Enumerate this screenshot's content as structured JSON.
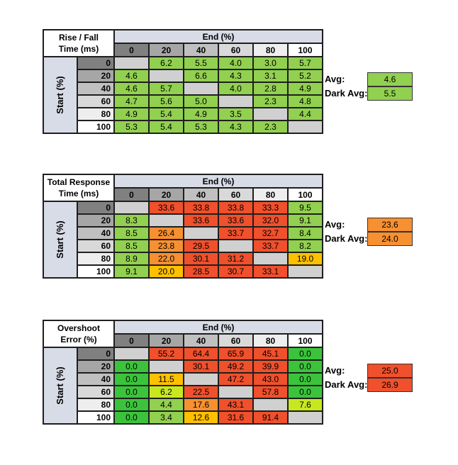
{
  "colors": {
    "header_bg": "#d8dce6",
    "col_shades": [
      "#808080",
      "#a6a6a6",
      "#c0c0c0",
      "#d9d9d9",
      "#eeeeee",
      "#ffffff"
    ],
    "empty": "#d0d0d0",
    "green": "#92d050",
    "bright_green": "#3bc43b",
    "yellow_green": "#c7e81f",
    "yellow": "#ffc000",
    "orange": "#f79030",
    "red": "#f0502c"
  },
  "tables": [
    {
      "corner": [
        "Rise / Fall",
        "Time (ms)"
      ],
      "end_label": "End (%)",
      "start_label": "Start (%)",
      "cols": [
        "0",
        "20",
        "40",
        "60",
        "80",
        "100"
      ],
      "rows": [
        {
          "label": "0",
          "cells": [
            "",
            "6.2",
            "5.5",
            "4.0",
            "3.0",
            "5.7"
          ],
          "colors": [
            "empty",
            "green",
            "green",
            "green",
            "green",
            "green"
          ]
        },
        {
          "label": "20",
          "cells": [
            "4.6",
            "",
            "6.6",
            "4.3",
            "3.1",
            "5.2"
          ],
          "colors": [
            "green",
            "empty",
            "green",
            "green",
            "green",
            "green"
          ]
        },
        {
          "label": "40",
          "cells": [
            "4.6",
            "5.7",
            "",
            "4.0",
            "2.8",
            "4.9"
          ],
          "colors": [
            "green",
            "green",
            "empty",
            "green",
            "green",
            "green"
          ]
        },
        {
          "label": "60",
          "cells": [
            "4.7",
            "5.6",
            "5.0",
            "",
            "2.3",
            "4.8"
          ],
          "colors": [
            "green",
            "green",
            "green",
            "empty",
            "green",
            "green"
          ]
        },
        {
          "label": "80",
          "cells": [
            "4.9",
            "5.4",
            "4.9",
            "3.5",
            "",
            "4.4"
          ],
          "colors": [
            "green",
            "green",
            "green",
            "green",
            "empty",
            "green"
          ]
        },
        {
          "label": "100",
          "cells": [
            "5.3",
            "5.4",
            "5.3",
            "4.3",
            "2.3",
            ""
          ],
          "colors": [
            "green",
            "green",
            "green",
            "green",
            "green",
            "empty"
          ]
        }
      ],
      "avg_label": "Avg:",
      "avg": "4.6",
      "avg_color": "green",
      "dark_avg_label": "Dark Avg:",
      "dark_avg": "5.5",
      "dark_avg_color": "green"
    },
    {
      "corner": [
        "Total Response",
        "Time (ms)"
      ],
      "end_label": "End (%)",
      "start_label": "Start (%)",
      "cols": [
        "0",
        "20",
        "40",
        "60",
        "80",
        "100"
      ],
      "rows": [
        {
          "label": "0",
          "cells": [
            "",
            "33.6",
            "33.8",
            "33.8",
            "33.3",
            "9.5"
          ],
          "colors": [
            "empty",
            "red",
            "red",
            "red",
            "red",
            "green"
          ]
        },
        {
          "label": "20",
          "cells": [
            "8.3",
            "",
            "33.6",
            "33.6",
            "32.0",
            "9.1"
          ],
          "colors": [
            "green",
            "empty",
            "red",
            "red",
            "red",
            "green"
          ]
        },
        {
          "label": "40",
          "cells": [
            "8.5",
            "26.4",
            "",
            "33.7",
            "32.7",
            "8.4"
          ],
          "colors": [
            "green",
            "orange",
            "empty",
            "red",
            "red",
            "green"
          ]
        },
        {
          "label": "60",
          "cells": [
            "8.5",
            "23.8",
            "29.5",
            "",
            "33.7",
            "8.2"
          ],
          "colors": [
            "green",
            "orange",
            "red",
            "empty",
            "red",
            "green"
          ]
        },
        {
          "label": "80",
          "cells": [
            "8.9",
            "22.0",
            "30.1",
            "31.2",
            "",
            "19.0"
          ],
          "colors": [
            "green",
            "orange",
            "red",
            "red",
            "empty",
            "yellow"
          ]
        },
        {
          "label": "100",
          "cells": [
            "9.1",
            "20.0",
            "28.5",
            "30.7",
            "33.1",
            ""
          ],
          "colors": [
            "green",
            "yellow",
            "red",
            "red",
            "red",
            "empty"
          ]
        }
      ],
      "avg_label": "Avg:",
      "avg": "23.6",
      "avg_color": "orange",
      "dark_avg_label": "Dark Avg:",
      "dark_avg": "24.0",
      "dark_avg_color": "orange"
    },
    {
      "corner": [
        "Overshoot",
        "Error (%)"
      ],
      "end_label": "End (%)",
      "start_label": "Start (%)",
      "cols": [
        "0",
        "20",
        "40",
        "60",
        "80",
        "100"
      ],
      "rows": [
        {
          "label": "0",
          "cells": [
            "",
            "55.2",
            "64.4",
            "65.9",
            "45.1",
            "0.0"
          ],
          "colors": [
            "empty",
            "red",
            "red",
            "red",
            "red",
            "bright_green"
          ]
        },
        {
          "label": "20",
          "cells": [
            "0.0",
            "",
            "30.1",
            "49.2",
            "39.9",
            "0.0"
          ],
          "colors": [
            "bright_green",
            "empty",
            "red",
            "red",
            "red",
            "bright_green"
          ]
        },
        {
          "label": "40",
          "cells": [
            "0.0",
            "11.5",
            "",
            "47.2",
            "43.0",
            "0.0"
          ],
          "colors": [
            "bright_green",
            "yellow",
            "empty",
            "red",
            "red",
            "bright_green"
          ]
        },
        {
          "label": "60",
          "cells": [
            "0.0",
            "6.2",
            "22.5",
            "",
            "57.8",
            "0.0"
          ],
          "colors": [
            "bright_green",
            "yellow_green",
            "red",
            "empty",
            "red",
            "bright_green"
          ]
        },
        {
          "label": "80",
          "cells": [
            "0.0",
            "4.4",
            "17.6",
            "43.1",
            "",
            "7.6"
          ],
          "colors": [
            "bright_green",
            "green",
            "orange",
            "red",
            "empty",
            "yellow_green"
          ]
        },
        {
          "label": "100",
          "cells": [
            "0.0",
            "3.4",
            "12.6",
            "31.6",
            "91.4",
            ""
          ],
          "colors": [
            "bright_green",
            "green",
            "yellow",
            "red",
            "red",
            "empty"
          ]
        }
      ],
      "avg_label": "Avg:",
      "avg": "25.0",
      "avg_color": "red",
      "dark_avg_label": "Dark Avg:",
      "dark_avg": "26.9",
      "dark_avg_color": "red"
    }
  ]
}
